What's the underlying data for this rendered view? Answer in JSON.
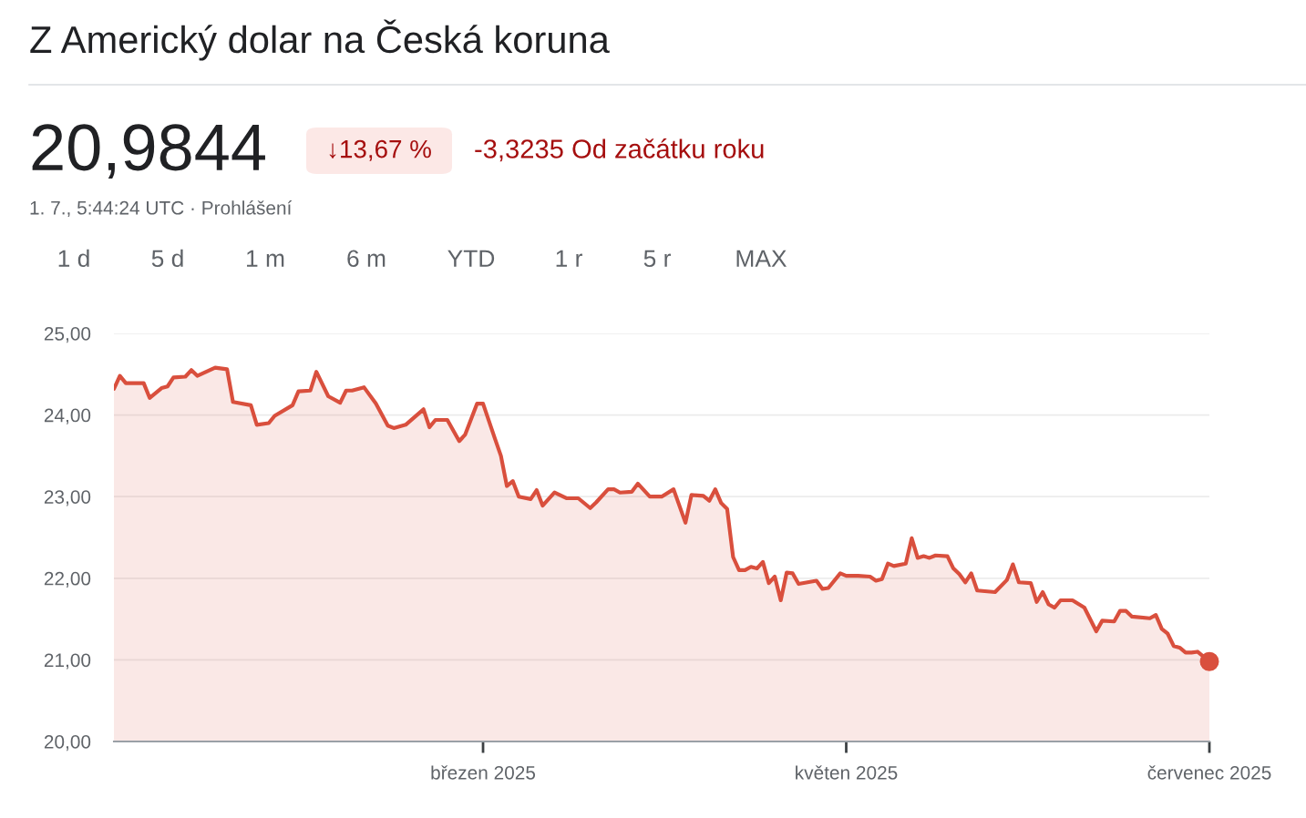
{
  "chart_data": {
    "type": "area",
    "title": "Z Americký dolar na Česká koruna",
    "annotations": [
      "20,9844",
      "↓13,67 %",
      "-3,3235 Od začátku roku",
      "1. 7., 5:44:24 UTC · Prohlášení",
      "1 d",
      "5 d",
      "1 m",
      "6 m",
      "YTD",
      "1 r",
      "5 r",
      "MAX"
    ],
    "series": [
      {
        "color": "#d94f3d",
        "x": [
          "2024-12-29",
          "2024-12-30",
          "2024-12-31",
          "2025-01-03",
          "2025-01-04",
          "2025-01-06",
          "2025-01-07",
          "2025-01-08",
          "2025-01-10",
          "2025-01-11",
          "2025-01-12",
          "2025-01-15",
          "2025-01-17",
          "2025-01-18",
          "2025-01-21",
          "2025-01-22",
          "2025-01-24",
          "2025-01-25",
          "2025-01-28",
          "2025-01-29",
          "2025-01-31",
          "2025-02-01",
          "2025-02-03",
          "2025-02-05",
          "2025-02-06",
          "2025-02-07",
          "2025-02-09",
          "2025-02-11",
          "2025-02-13",
          "2025-02-14",
          "2025-02-16",
          "2025-02-19",
          "2025-02-20",
          "2025-02-21",
          "2025-02-23",
          "2025-02-25",
          "2025-02-26",
          "2025-02-28",
          "2025-03-01",
          "2025-03-03",
          "2025-03-04",
          "2025-03-05",
          "2025-03-06",
          "2025-03-07",
          "2025-03-09",
          "2025-03-10",
          "2025-03-11",
          "2025-03-13",
          "2025-03-15",
          "2025-03-17",
          "2025-03-19",
          "2025-03-20",
          "2025-03-22",
          "2025-03-23",
          "2025-03-24",
          "2025-03-26",
          "2025-03-27",
          "2025-03-29",
          "2025-03-31",
          "2025-04-02",
          "2025-04-04",
          "2025-04-05",
          "2025-04-07",
          "2025-04-08",
          "2025-04-09",
          "2025-04-10",
          "2025-04-11",
          "2025-04-12",
          "2025-04-13",
          "2025-04-14",
          "2025-04-15",
          "2025-04-16",
          "2025-04-17",
          "2025-04-18",
          "2025-04-19",
          "2025-04-20",
          "2025-04-21",
          "2025-04-22",
          "2025-04-23",
          "2025-04-26",
          "2025-04-27",
          "2025-04-28",
          "2025-04-30",
          "2025-05-01",
          "2025-05-03",
          "2025-05-05",
          "2025-05-06",
          "2025-05-07",
          "2025-05-08",
          "2025-05-09",
          "2025-05-11",
          "2025-05-12",
          "2025-05-13",
          "2025-05-14",
          "2025-05-15",
          "2025-05-16",
          "2025-05-18",
          "2025-05-19",
          "2025-05-20",
          "2025-05-21",
          "2025-05-22",
          "2025-05-23",
          "2025-05-26",
          "2025-05-28",
          "2025-05-29",
          "2025-05-30",
          "2025-06-01",
          "2025-06-02",
          "2025-06-03",
          "2025-06-04",
          "2025-06-05",
          "2025-06-06",
          "2025-06-08",
          "2025-06-10",
          "2025-06-12",
          "2025-06-13",
          "2025-06-15",
          "2025-06-16",
          "2025-06-17",
          "2025-06-18",
          "2025-06-21",
          "2025-06-22",
          "2025-06-23",
          "2025-06-24",
          "2025-06-25",
          "2025-06-26",
          "2025-06-27",
          "2025-06-28",
          "2025-06-29",
          "2025-07-01"
        ],
        "values": [
          24.32,
          24.48,
          24.39,
          24.39,
          24.21,
          24.33,
          24.35,
          24.46,
          24.47,
          24.55,
          24.48,
          24.58,
          24.56,
          24.16,
          24.12,
          23.88,
          23.9,
          23.99,
          24.12,
          24.29,
          24.3,
          24.53,
          24.23,
          24.15,
          24.3,
          24.3,
          24.34,
          24.14,
          23.87,
          23.84,
          23.88,
          24.07,
          23.85,
          23.94,
          23.94,
          23.68,
          23.76,
          24.14,
          24.14,
          23.71,
          23.5,
          23.13,
          23.19,
          23.0,
          22.97,
          23.08,
          22.89,
          23.05,
          22.98,
          22.98,
          22.86,
          22.93,
          23.09,
          23.09,
          23.05,
          23.06,
          23.16,
          23.0,
          23.0,
          23.09,
          22.68,
          23.02,
          23.01,
          22.95,
          23.09,
          22.92,
          22.85,
          22.26,
          22.1,
          22.1,
          22.14,
          22.12,
          22.2,
          21.94,
          22.02,
          21.73,
          22.07,
          22.06,
          21.93,
          21.97,
          21.87,
          21.88,
          22.06,
          22.03,
          22.03,
          22.02,
          21.97,
          21.99,
          22.18,
          22.15,
          22.18,
          22.49,
          22.25,
          22.27,
          22.25,
          22.28,
          22.27,
          22.12,
          22.05,
          21.95,
          22.06,
          21.85,
          21.83,
          21.98,
          22.17,
          21.95,
          21.94,
          21.71,
          21.83,
          21.68,
          21.64,
          21.73,
          21.73,
          21.64,
          21.35,
          21.48,
          21.47,
          21.6,
          21.6,
          21.53,
          21.51,
          21.55,
          21.38,
          21.32,
          21.17,
          21.15,
          21.09,
          21.09,
          21.1,
          20.98
        ]
      },
      {
        "type": "scatter",
        "color": "#d94f3d",
        "x": [
          "2025-07-01"
        ],
        "values": [
          20.98
        ]
      }
    ],
    "xlim": [
      "2024-12-29",
      "2025-07-01"
    ],
    "xticks": [
      {
        "value": "2025-03-01",
        "label": "březen 2025"
      },
      {
        "value": "2025-05-01",
        "label": "květen 2025"
      },
      {
        "value": "2025-07-01",
        "label": "červenec 2025"
      }
    ],
    "ylim": [
      20,
      25
    ],
    "yticks": [
      {
        "value": 20,
        "label": "20,00"
      },
      {
        "value": 21,
        "label": "21,00"
      },
      {
        "value": 22,
        "label": "22,00"
      },
      {
        "value": 23,
        "label": "23,00"
      },
      {
        "value": 24,
        "label": "24,00"
      },
      {
        "value": 25,
        "label": "25,00"
      }
    ],
    "grid": "y",
    "legend": false
  }
}
